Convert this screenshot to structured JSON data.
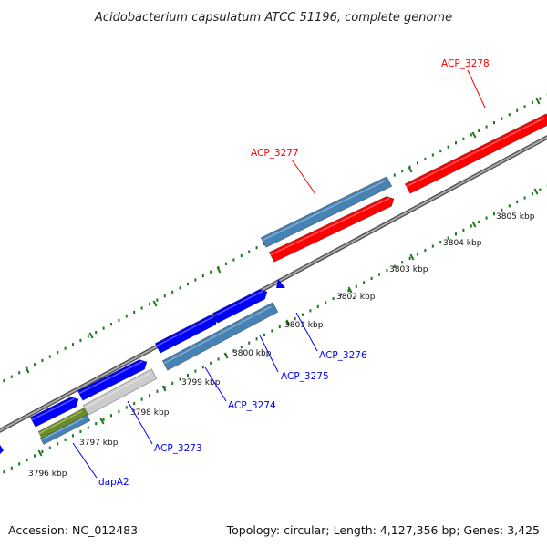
{
  "title": "Acidobacterium capsulatum ATCC 51196, complete genome",
  "footer": {
    "accession": "Accession: NC_012483",
    "summary": "Topology: circular; Length: 4,127,356 bp; Genes: 3,425"
  },
  "colors": {
    "forward_cds": "#ff0000",
    "reverse_cds": "#0000ff",
    "steelblue_feature": "#4682b4",
    "gray_feature": "#cccccc",
    "olive_feature": "#6b8e23",
    "backbone": "#808080",
    "ticks": "#1f7a1f"
  },
  "ticks": [
    {
      "kbp": 3796,
      "label": "3796 kbp"
    },
    {
      "kbp": 3797,
      "label": "3797 kbp"
    },
    {
      "kbp": 3798,
      "label": "3798 kbp"
    },
    {
      "kbp": 3799,
      "label": "3799 kbp"
    },
    {
      "kbp": 3800,
      "label": "3800 kbp"
    },
    {
      "kbp": 3801,
      "label": "3801 kbp"
    },
    {
      "kbp": 3802,
      "label": "3802 kbp"
    },
    {
      "kbp": 3803,
      "label": "3803 kbp"
    },
    {
      "kbp": 3804,
      "label": "3804 kbp"
    },
    {
      "kbp": 3805,
      "label": "3805 kbp"
    }
  ],
  "genes": [
    {
      "label": "ACP_3278",
      "color": "#ff0000"
    },
    {
      "label": "ACP_3277",
      "color": "#ff0000"
    },
    {
      "label": "ACP_3276",
      "color": "#0000ff"
    },
    {
      "label": "ACP_3275",
      "color": "#0000ff"
    },
    {
      "label": "ACP_3274",
      "color": "#0000ff"
    },
    {
      "label": "ACP_3273",
      "color": "#0000ff"
    },
    {
      "label": "dapA2",
      "color": "#0000ff"
    }
  ]
}
